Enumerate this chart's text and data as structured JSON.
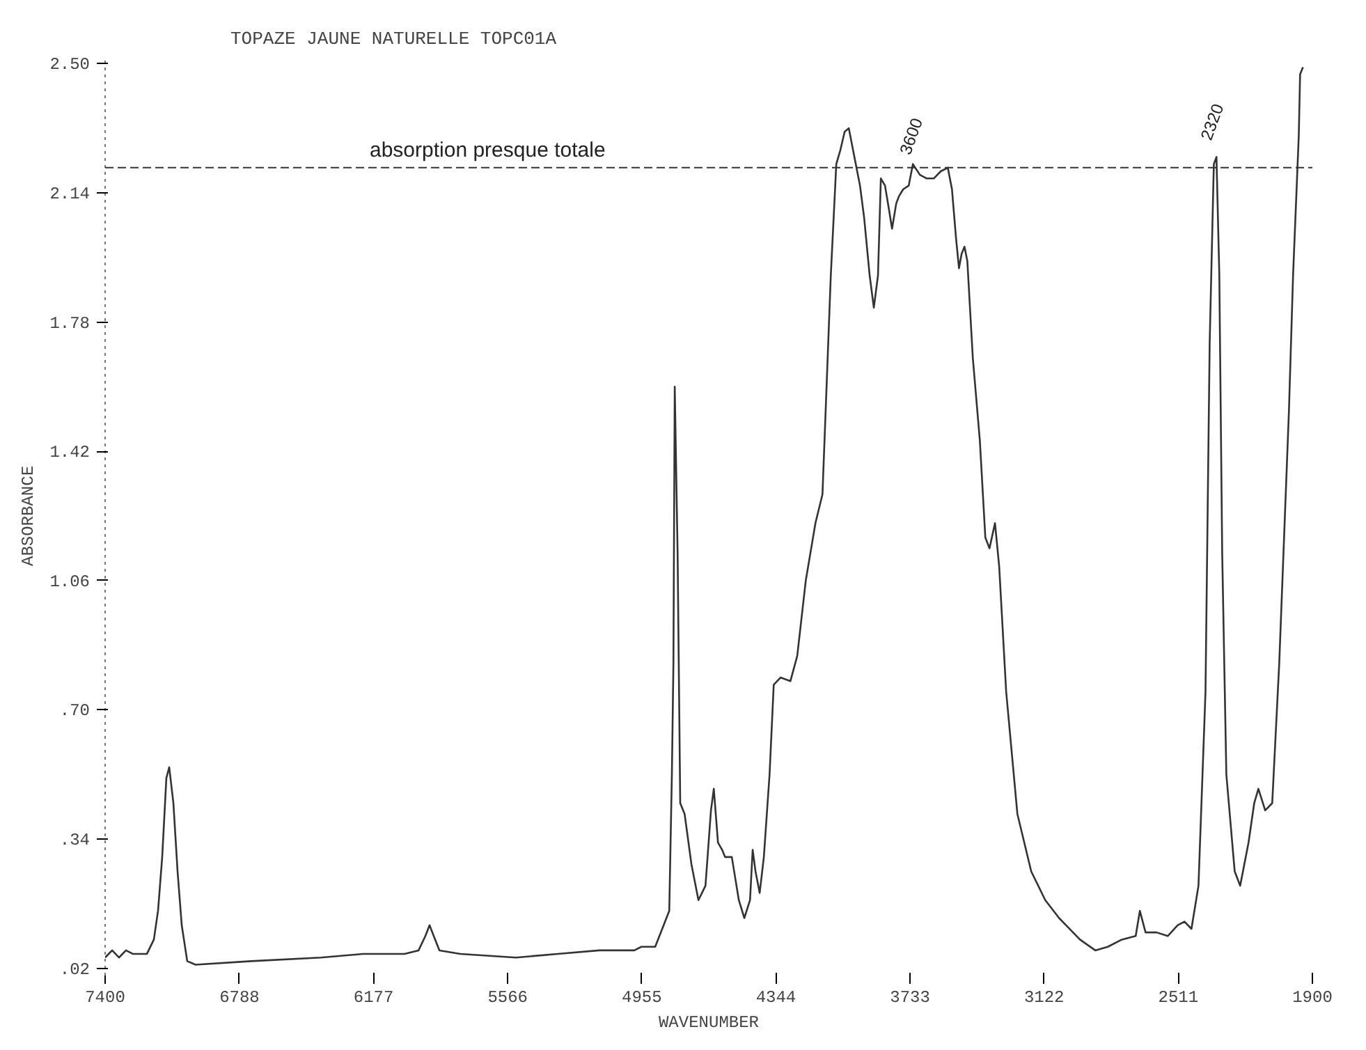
{
  "chart_data": {
    "type": "line",
    "title": "TOPAZE JAUNE NATURELLE TOPC01A",
    "xlabel": "WAVENUMBER",
    "ylabel": "ABSORBANCE",
    "xlim": [
      7400,
      1900
    ],
    "xticks": [
      7400,
      6788,
      6177,
      5566,
      4955,
      4344,
      3733,
      3122,
      2511,
      1900
    ],
    "ylim": [
      -0.04,
      2.52
    ],
    "yticks": [
      {
        "value": -0.02,
        "label": ".02"
      },
      {
        "value": 0.34,
        "label": ".34"
      },
      {
        "value": 0.7,
        "label": ".70"
      },
      {
        "value": 1.06,
        "label": "1.06"
      },
      {
        "value": 1.42,
        "label": "1.42"
      },
      {
        "value": 1.78,
        "label": "1.78"
      },
      {
        "value": 2.14,
        "label": "2.14"
      },
      {
        "value": 2.5,
        "label": "2.50"
      }
    ],
    "grid": false,
    "marker": "none",
    "line_style": "solid",
    "ref_lines": [
      {
        "axis": "y",
        "value": 2.21,
        "label": "absorption presque totale",
        "color": "#333333",
        "line_style": "dashed"
      }
    ],
    "annotations": [
      {
        "text": "3600",
        "x": 3720,
        "y": 2.22
      },
      {
        "text": "2320",
        "x": 2349,
        "y": 2.26
      }
    ],
    "series": [
      {
        "color": "#333333",
        "x": [
          7400,
          7368,
          7337,
          7305,
          7273,
          7241,
          7210,
          7178,
          7159,
          7140,
          7121,
          7108,
          7089,
          7070,
          7051,
          7026,
          6988,
          6734,
          6417,
          6226,
          6036,
          5972,
          5941,
          5922,
          5903,
          5877,
          5782,
          5528,
          5338,
          5148,
          5084,
          4989,
          4957,
          4894,
          4830,
          4818,
          4811,
          4805,
          4792,
          4780,
          4760,
          4729,
          4697,
          4665,
          4640,
          4627,
          4608,
          4589,
          4576,
          4564,
          4545,
          4513,
          4488,
          4462,
          4450,
          4437,
          4418,
          4399,
          4373,
          4354,
          4323,
          4278,
          4247,
          4208,
          4164,
          4132,
          4094,
          4069,
          4050,
          4031,
          4012,
          3993,
          3961,
          3942,
          3917,
          3898,
          3879,
          3866,
          3847,
          3828,
          3815,
          3796,
          3784,
          3764,
          3739,
          3720,
          3688,
          3657,
          3625,
          3593,
          3561,
          3542,
          3523,
          3510,
          3498,
          3485,
          3472,
          3447,
          3415,
          3390,
          3371,
          3346,
          3327,
          3295,
          3244,
          3181,
          3117,
          3054,
          2959,
          2889,
          2832,
          2768,
          2705,
          2686,
          2660,
          2610,
          2559,
          2514,
          2483,
          2451,
          2419,
          2387,
          2368,
          2349,
          2337,
          2324,
          2311,
          2292,
          2254,
          2229,
          2191,
          2165,
          2146,
          2115,
          2083,
          2051,
          2007,
          1988,
          1962,
          1956,
          1943
        ],
        "values": [
          0.01,
          0.03,
          0.01,
          0.03,
          0.02,
          0.02,
          0.02,
          0.06,
          0.14,
          0.29,
          0.51,
          0.54,
          0.44,
          0.25,
          0.1,
          0.0,
          -0.01,
          0.0,
          0.01,
          0.02,
          0.02,
          0.03,
          0.07,
          0.1,
          0.07,
          0.03,
          0.02,
          0.01,
          0.02,
          0.03,
          0.03,
          0.03,
          0.04,
          0.04,
          0.14,
          0.52,
          0.83,
          1.6,
          1.14,
          0.44,
          0.41,
          0.27,
          0.17,
          0.21,
          0.42,
          0.48,
          0.33,
          0.31,
          0.29,
          0.29,
          0.29,
          0.17,
          0.12,
          0.17,
          0.31,
          0.25,
          0.19,
          0.29,
          0.52,
          0.77,
          0.79,
          0.78,
          0.85,
          1.06,
          1.22,
          1.3,
          1.91,
          2.22,
          2.26,
          2.31,
          2.32,
          2.26,
          2.16,
          2.07,
          1.91,
          1.82,
          1.91,
          2.18,
          2.16,
          2.09,
          2.04,
          2.11,
          2.13,
          2.15,
          2.16,
          2.22,
          2.19,
          2.18,
          2.18,
          2.2,
          2.21,
          2.15,
          2.01,
          1.93,
          1.97,
          1.99,
          1.95,
          1.68,
          1.45,
          1.18,
          1.15,
          1.22,
          1.1,
          0.75,
          0.41,
          0.25,
          0.17,
          0.12,
          0.06,
          0.03,
          0.04,
          0.06,
          0.07,
          0.14,
          0.08,
          0.08,
          0.07,
          0.1,
          0.11,
          0.09,
          0.21,
          0.75,
          1.72,
          2.22,
          2.24,
          1.91,
          1.14,
          0.52,
          0.25,
          0.21,
          0.33,
          0.44,
          0.48,
          0.42,
          0.44,
          0.83,
          1.53,
          1.91,
          2.3,
          2.47,
          2.49
        ]
      }
    ]
  }
}
